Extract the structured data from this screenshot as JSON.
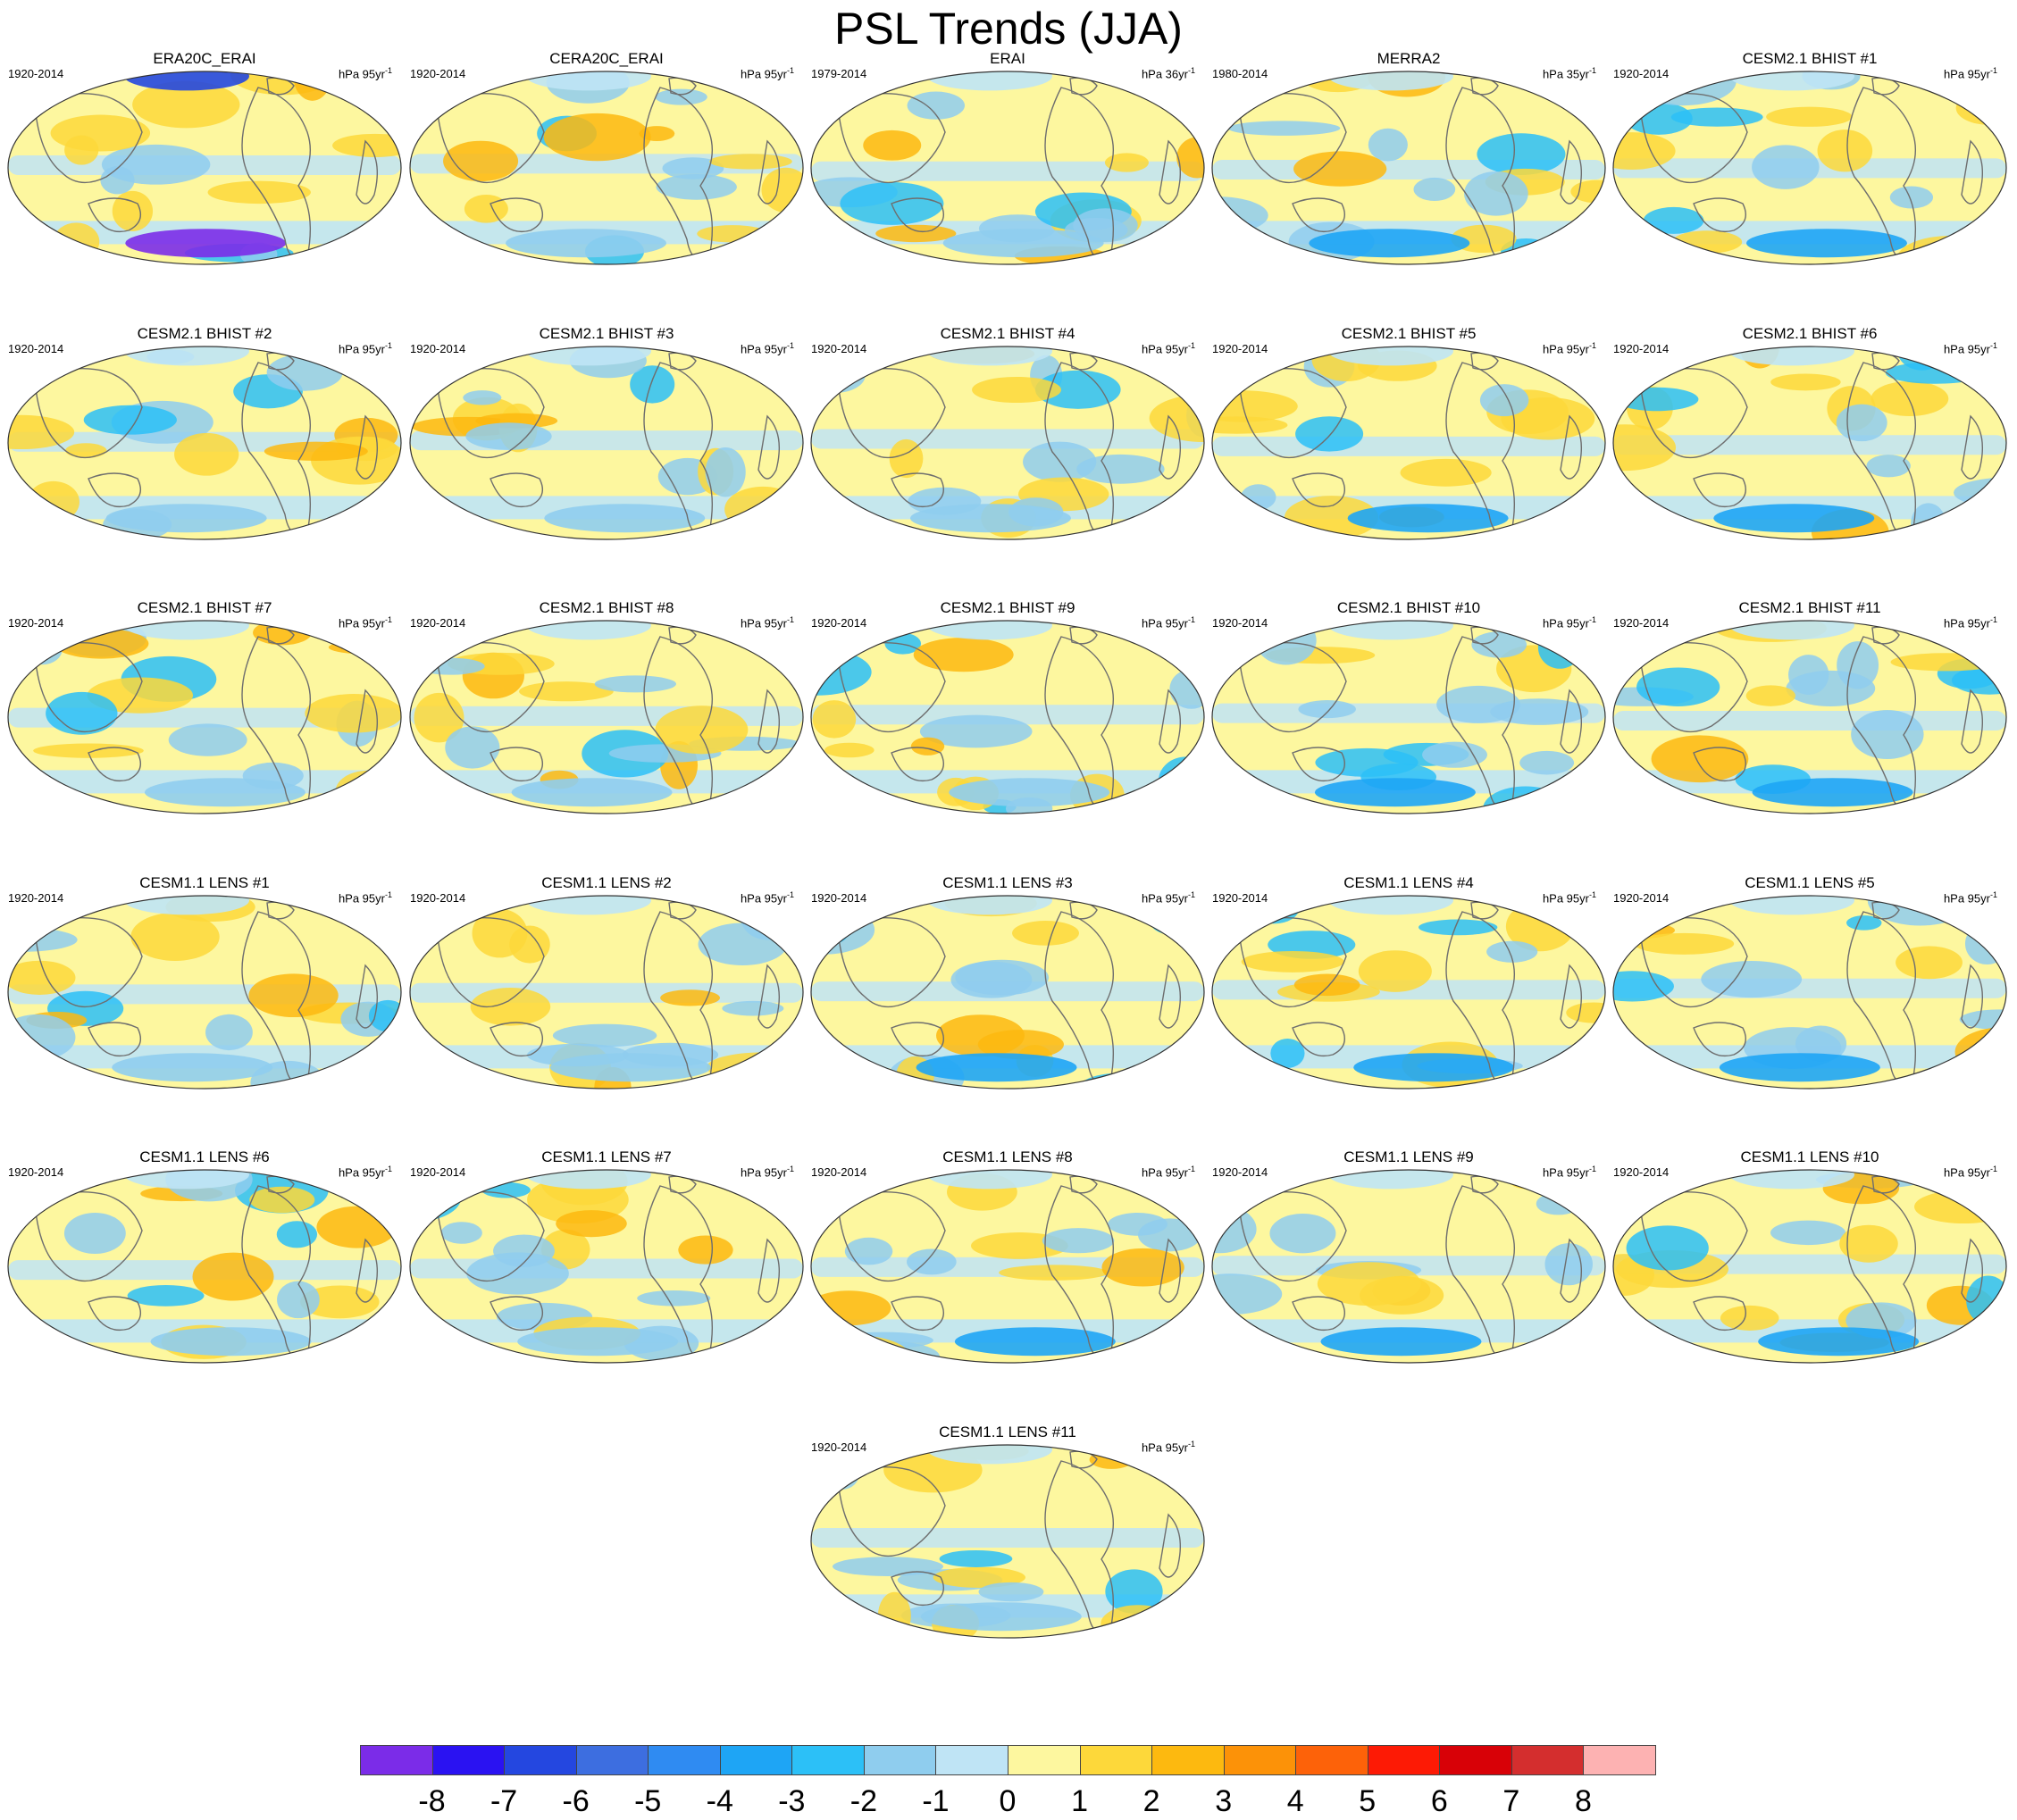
{
  "title": "PSL Trends (JJA)",
  "panels": [
    {
      "title": "ERA20C_ERAI",
      "period": "1920-2014",
      "units": "hPa 95yr",
      "units_sup": "-1"
    },
    {
      "title": "CERA20C_ERAI",
      "period": "1920-2014",
      "units": "hPa 95yr",
      "units_sup": "-1"
    },
    {
      "title": "ERAI",
      "period": "1979-2014",
      "units": "hPa 36yr",
      "units_sup": "-1"
    },
    {
      "title": "MERRA2",
      "period": "1980-2014",
      "units": "hPa 35yr",
      "units_sup": "-1"
    },
    {
      "title": "CESM2.1 BHIST #1",
      "period": "1920-2014",
      "units": "hPa 95yr",
      "units_sup": "-1"
    },
    {
      "title": "CESM2.1 BHIST #2",
      "period": "1920-2014",
      "units": "hPa 95yr",
      "units_sup": "-1"
    },
    {
      "title": "CESM2.1 BHIST #3",
      "period": "1920-2014",
      "units": "hPa 95yr",
      "units_sup": "-1"
    },
    {
      "title": "CESM2.1 BHIST #4",
      "period": "1920-2014",
      "units": "hPa 95yr",
      "units_sup": "-1"
    },
    {
      "title": "CESM2.1 BHIST #5",
      "period": "1920-2014",
      "units": "hPa 95yr",
      "units_sup": "-1"
    },
    {
      "title": "CESM2.1 BHIST #6",
      "period": "1920-2014",
      "units": "hPa 95yr",
      "units_sup": "-1"
    },
    {
      "title": "CESM2.1 BHIST #7",
      "period": "1920-2014",
      "units": "hPa 95yr",
      "units_sup": "-1"
    },
    {
      "title": "CESM2.1 BHIST #8",
      "period": "1920-2014",
      "units": "hPa 95yr",
      "units_sup": "-1"
    },
    {
      "title": "CESM2.1 BHIST #9",
      "period": "1920-2014",
      "units": "hPa 95yr",
      "units_sup": "-1"
    },
    {
      "title": "CESM2.1 BHIST #10",
      "period": "1920-2014",
      "units": "hPa 95yr",
      "units_sup": "-1"
    },
    {
      "title": "CESM2.1 BHIST #11",
      "period": "1920-2014",
      "units": "hPa 95yr",
      "units_sup": "-1"
    },
    {
      "title": "CESM1.1 LENS #1",
      "period": "1920-2014",
      "units": "hPa 95yr",
      "units_sup": "-1"
    },
    {
      "title": "CESM1.1 LENS #2",
      "period": "1920-2014",
      "units": "hPa 95yr",
      "units_sup": "-1"
    },
    {
      "title": "CESM1.1 LENS #3",
      "period": "1920-2014",
      "units": "hPa 95yr",
      "units_sup": "-1"
    },
    {
      "title": "CESM1.1 LENS #4",
      "period": "1920-2014",
      "units": "hPa 95yr",
      "units_sup": "-1"
    },
    {
      "title": "CESM1.1 LENS #5",
      "period": "1920-2014",
      "units": "hPa 95yr",
      "units_sup": "-1"
    },
    {
      "title": "CESM1.1 LENS #6",
      "period": "1920-2014",
      "units": "hPa 95yr",
      "units_sup": "-1"
    },
    {
      "title": "CESM1.1 LENS #7",
      "period": "1920-2014",
      "units": "hPa 95yr",
      "units_sup": "-1"
    },
    {
      "title": "CESM1.1 LENS #8",
      "period": "1920-2014",
      "units": "hPa 95yr",
      "units_sup": "-1"
    },
    {
      "title": "CESM1.1 LENS #9",
      "period": "1920-2014",
      "units": "hPa 95yr",
      "units_sup": "-1"
    },
    {
      "title": "CESM1.1 LENS #10",
      "period": "1920-2014",
      "units": "hPa 95yr",
      "units_sup": "-1"
    },
    {
      "title": "CESM1.1 LENS #11",
      "period": "1920-2014",
      "units": "hPa 95yr",
      "units_sup": "-1"
    }
  ],
  "colorbar": {
    "colors": [
      "#7b2ce8",
      "#2a12f2",
      "#2447e0",
      "#3d6ee0",
      "#2f8bf2",
      "#1ea5f5",
      "#2cc0f7",
      "#8fcdee",
      "#bfe4f5",
      "#fdf79f",
      "#fdd83a",
      "#fdb90f",
      "#fc9208",
      "#fd6209",
      "#fd1a05",
      "#d80107",
      "#d42e2e",
      "#fdb2b2"
    ],
    "labels": [
      "-8",
      "-7",
      "-6",
      "-5",
      "-4",
      "-3",
      "-2",
      "-1",
      "0",
      "1",
      "2",
      "3",
      "4",
      "5",
      "6",
      "7",
      "8"
    ]
  },
  "colors": {
    "ocean_base": "#fdf79f",
    "coastline": "#6e6e6e",
    "border": "#333333"
  }
}
